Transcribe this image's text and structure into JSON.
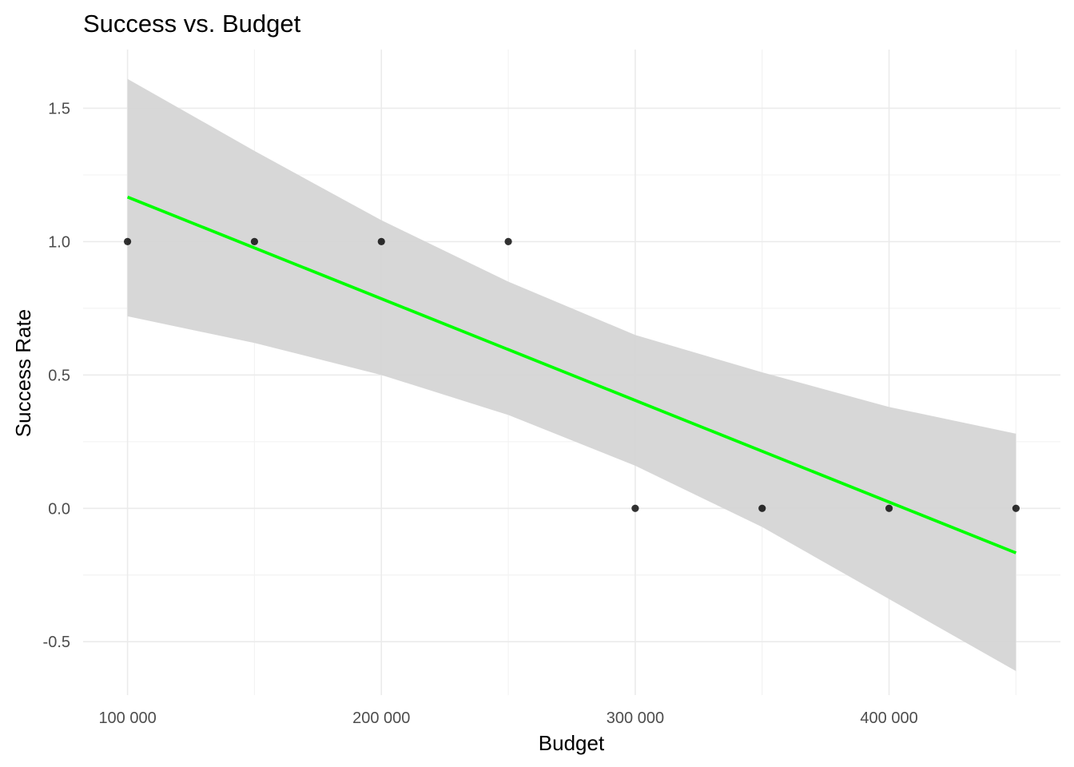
{
  "chart_data": {
    "type": "scatter",
    "title": "Success vs. Budget",
    "xlabel": "Budget",
    "ylabel": "Success Rate",
    "xlim": [
      82500,
      467500
    ],
    "ylim": [
      -0.7,
      1.72
    ],
    "x_ticks": [
      100000,
      200000,
      300000,
      400000
    ],
    "x_tick_labels": [
      "100 000",
      "200 000",
      "300 000",
      "400 000"
    ],
    "x_minor_ticks": [
      150000,
      250000,
      350000,
      450000
    ],
    "y_ticks": [
      -0.5,
      0.0,
      0.5,
      1.0,
      1.5
    ],
    "y_tick_labels": [
      "-0.5",
      "0.0",
      "0.5",
      "1.0",
      "1.5"
    ],
    "y_minor_ticks": [
      -0.25,
      0.25,
      0.75,
      1.25
    ],
    "grid": true,
    "points": {
      "x": [
        100000,
        150000,
        200000,
        250000,
        300000,
        350000,
        400000,
        450000
      ],
      "y": [
        1,
        1,
        1,
        1,
        0,
        0,
        0,
        0
      ],
      "color": "#000000"
    },
    "trend_line": {
      "type": "linear",
      "x": [
        100000,
        450000
      ],
      "y": [
        1.167,
        -0.167
      ],
      "color": "#00ff00"
    },
    "confidence_band": {
      "x": [
        100000,
        150000,
        200000,
        250000,
        300000,
        350000,
        400000,
        450000
      ],
      "lower": [
        0.72,
        0.62,
        0.5,
        0.35,
        0.16,
        -0.07,
        -0.34,
        -0.61
      ],
      "upper": [
        1.61,
        1.34,
        1.08,
        0.85,
        0.65,
        0.51,
        0.38,
        0.28
      ],
      "color": "#d5d5d5"
    }
  }
}
